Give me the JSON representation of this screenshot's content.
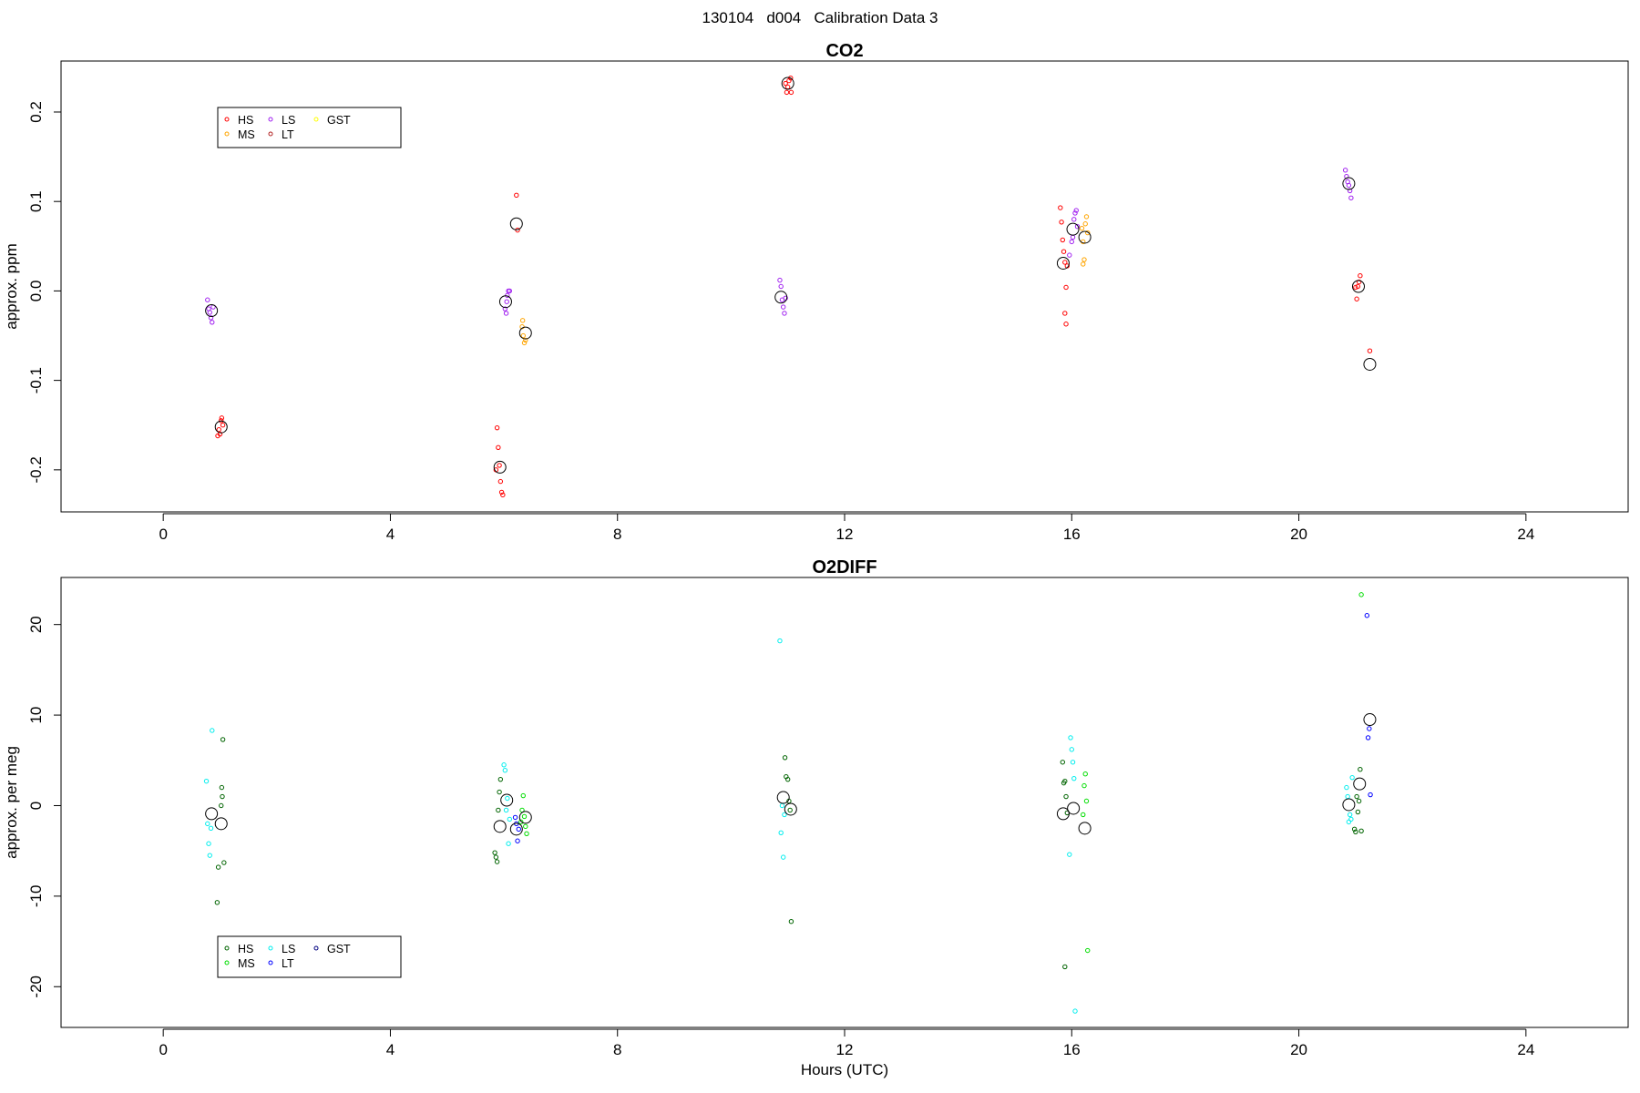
{
  "figure": {
    "title": "130104   d004   Calibration Data 3"
  },
  "chart_data": [
    {
      "type": "scatter",
      "title": "CO2",
      "xlabel": "",
      "ylabel": "approx. ppm",
      "xlim": [
        -1.8,
        25.8
      ],
      "ylim": [
        -0.247,
        0.257
      ],
      "xticks": [
        "0",
        "4",
        "8",
        "12",
        "16",
        "20",
        "24"
      ],
      "yticks": [
        "-0.2",
        "-0.1",
        "0.0",
        "0.1",
        "0.2"
      ],
      "legend": {
        "position": "top-left",
        "entries": [
          "HS",
          "MS",
          "LS",
          "LT",
          "GST"
        ]
      },
      "series": [
        {
          "name": "HS",
          "color": "#ff0000",
          "points": [
            [
              0.98,
              -0.155
            ],
            [
              1.0,
              -0.16
            ],
            [
              1.02,
              -0.145
            ],
            [
              0.96,
              -0.162
            ],
            [
              1.05,
              -0.15
            ],
            [
              1.03,
              -0.142
            ],
            [
              5.88,
              -0.153
            ],
            [
              5.9,
              -0.175
            ],
            [
              5.92,
              -0.195
            ],
            [
              5.94,
              -0.213
            ],
            [
              5.96,
              -0.225
            ],
            [
              5.98,
              -0.228
            ],
            [
              5.86,
              -0.2
            ],
            [
              6.22,
              0.107
            ],
            [
              6.24,
              0.068
            ],
            [
              10.98,
              0.222
            ],
            [
              11.02,
              0.235
            ],
            [
              11.05,
              0.238
            ],
            [
              11.06,
              0.222
            ],
            [
              11.0,
              0.228
            ],
            [
              10.96,
              0.232
            ],
            [
              15.8,
              0.093
            ],
            [
              15.82,
              0.077
            ],
            [
              15.84,
              0.057
            ],
            [
              15.86,
              0.044
            ],
            [
              15.88,
              0.032
            ],
            [
              15.9,
              0.004
            ],
            [
              15.88,
              -0.025
            ],
            [
              15.9,
              -0.037
            ],
            [
              15.92,
              0.028
            ],
            [
              21.0,
              0.004
            ],
            [
              21.02,
              -0.009
            ],
            [
              21.06,
              0.01
            ],
            [
              21.08,
              0.017
            ],
            [
              21.04,
              0.005
            ],
            [
              21.25,
              -0.067
            ]
          ]
        },
        {
          "name": "MS",
          "color": "#ffa500",
          "points": [
            [
              6.32,
              -0.04
            ],
            [
              6.34,
              -0.05
            ],
            [
              6.36,
              -0.058
            ],
            [
              6.38,
              -0.055
            ],
            [
              6.33,
              -0.033
            ],
            [
              16.18,
              0.07
            ],
            [
              16.2,
              0.055
            ],
            [
              16.22,
              0.035
            ],
            [
              16.24,
              0.075
            ],
            [
              16.26,
              0.083
            ],
            [
              16.28,
              0.065
            ],
            [
              16.2,
              0.03
            ]
          ]
        },
        {
          "name": "LS",
          "color": "#a020f0",
          "points": [
            [
              0.78,
              -0.01
            ],
            [
              0.8,
              -0.02
            ],
            [
              0.82,
              -0.024
            ],
            [
              0.84,
              -0.03
            ],
            [
              0.86,
              -0.035
            ],
            [
              0.88,
              -0.018
            ],
            [
              6.02,
              -0.02
            ],
            [
              6.04,
              -0.025
            ],
            [
              6.06,
              -0.005
            ],
            [
              6.08,
              0.0
            ],
            [
              6.1,
              0.0
            ],
            [
              6.05,
              -0.012
            ],
            [
              10.86,
              0.012
            ],
            [
              10.88,
              0.005
            ],
            [
              10.9,
              -0.01
            ],
            [
              10.92,
              -0.018
            ],
            [
              10.94,
              -0.025
            ],
            [
              10.96,
              -0.008
            ],
            [
              16.0,
              0.055
            ],
            [
              16.02,
              0.06
            ],
            [
              16.04,
              0.08
            ],
            [
              16.06,
              0.087
            ],
            [
              16.08,
              0.09
            ],
            [
              16.1,
              0.072
            ],
            [
              15.96,
              0.04
            ],
            [
              20.82,
              0.135
            ],
            [
              20.84,
              0.128
            ],
            [
              20.86,
              0.122
            ],
            [
              20.88,
              0.118
            ],
            [
              20.9,
              0.112
            ],
            [
              20.92,
              0.104
            ]
          ]
        },
        {
          "name": "LT",
          "color": "#b22222",
          "points": []
        },
        {
          "name": "GST",
          "color": "#ffff00",
          "points": []
        }
      ],
      "means": [
        [
          0.85,
          -0.022
        ],
        [
          1.02,
          -0.152
        ],
        [
          5.93,
          -0.197
        ],
        [
          6.03,
          -0.012
        ],
        [
          6.22,
          0.075
        ],
        [
          6.38,
          -0.047
        ],
        [
          10.88,
          -0.007
        ],
        [
          11.0,
          0.232
        ],
        [
          15.85,
          0.031
        ],
        [
          16.02,
          0.069
        ],
        [
          16.23,
          0.06
        ],
        [
          20.88,
          0.12
        ],
        [
          21.05,
          0.005
        ],
        [
          21.25,
          -0.082
        ]
      ]
    },
    {
      "type": "scatter",
      "title": "O2DIFF",
      "xlabel": "Hours (UTC)",
      "ylabel": "approx. per meg",
      "xlim": [
        -1.8,
        25.8
      ],
      "ylim": [
        -24.5,
        25.2
      ],
      "xticks": [
        "0",
        "4",
        "8",
        "12",
        "16",
        "20",
        "24"
      ],
      "yticks": [
        "-20",
        "-10",
        "0",
        "10",
        "20"
      ],
      "legend": {
        "position": "bottom-left",
        "entries": [
          "HS",
          "MS",
          "LS",
          "LT",
          "GST"
        ]
      },
      "series": [
        {
          "name": "HS",
          "color": "#006400",
          "points": [
            [
              0.95,
              -10.7
            ],
            [
              0.97,
              -6.8
            ],
            [
              1.02,
              0.0
            ],
            [
              1.04,
              1.0
            ],
            [
              1.03,
              2.0
            ],
            [
              1.05,
              7.3
            ],
            [
              1.07,
              -6.3
            ],
            [
              5.84,
              -5.2
            ],
            [
              5.86,
              -5.7
            ],
            [
              5.88,
              -6.2
            ],
            [
              5.9,
              -0.5
            ],
            [
              5.92,
              1.5
            ],
            [
              5.94,
              2.9
            ],
            [
              10.95,
              5.3
            ],
            [
              10.97,
              3.2
            ],
            [
              11.0,
              2.9
            ],
            [
              11.02,
              0.5
            ],
            [
              11.04,
              -0.5
            ],
            [
              11.06,
              -12.8
            ],
            [
              15.84,
              4.8
            ],
            [
              15.86,
              2.5
            ],
            [
              15.88,
              2.7
            ],
            [
              15.9,
              1.0
            ],
            [
              15.92,
              -0.8
            ],
            [
              15.88,
              -17.8
            ],
            [
              20.98,
              -2.6
            ],
            [
              21.0,
              -2.9
            ],
            [
              21.02,
              1.0
            ],
            [
              21.04,
              -0.7
            ],
            [
              21.06,
              0.5
            ],
            [
              21.08,
              4.0
            ],
            [
              21.1,
              -2.8
            ]
          ]
        },
        {
          "name": "MS",
          "color": "#00dd00",
          "points": [
            [
              6.32,
              -0.5
            ],
            [
              6.34,
              1.1
            ],
            [
              6.36,
              -1.2
            ],
            [
              6.38,
              -2.3
            ],
            [
              6.4,
              -3.1
            ],
            [
              6.3,
              -1.8
            ],
            [
              16.2,
              -1.0
            ],
            [
              16.22,
              2.2
            ],
            [
              16.24,
              3.5
            ],
            [
              16.26,
              0.5
            ],
            [
              16.28,
              -16.0
            ],
            [
              21.1,
              23.3
            ]
          ]
        },
        {
          "name": "LS",
          "color": "#00eeee",
          "points": [
            [
              0.76,
              2.7
            ],
            [
              0.78,
              -2.0
            ],
            [
              0.8,
              -4.2
            ],
            [
              0.82,
              -5.5
            ],
            [
              0.84,
              -2.5
            ],
            [
              0.86,
              8.3
            ],
            [
              6.0,
              4.5
            ],
            [
              6.02,
              3.9
            ],
            [
              6.04,
              -0.5
            ],
            [
              6.06,
              0.8
            ],
            [
              6.08,
              -4.2
            ],
            [
              6.1,
              -1.5
            ],
            [
              10.86,
              18.2
            ],
            [
              10.88,
              -3.0
            ],
            [
              10.9,
              0.0
            ],
            [
              10.92,
              -5.7
            ],
            [
              10.94,
              -1.0
            ],
            [
              15.98,
              7.5
            ],
            [
              16.0,
              6.2
            ],
            [
              16.02,
              4.8
            ],
            [
              16.04,
              3.0
            ],
            [
              15.96,
              -5.4
            ],
            [
              16.06,
              -22.7
            ],
            [
              20.84,
              2.0
            ],
            [
              20.86,
              1.0
            ],
            [
              20.88,
              -1.8
            ],
            [
              20.9,
              -1.0
            ],
            [
              20.92,
              -1.5
            ],
            [
              20.94,
              3.1
            ]
          ]
        },
        {
          "name": "LT",
          "color": "#0000ff",
          "points": [
            [
              6.2,
              -1.3
            ],
            [
              6.22,
              -2.0
            ],
            [
              6.24,
              -3.9
            ],
            [
              6.26,
              -2.6
            ],
            [
              21.2,
              21.0
            ],
            [
              21.22,
              7.5
            ],
            [
              21.24,
              8.5
            ],
            [
              21.26,
              1.2
            ]
          ]
        },
        {
          "name": "GST",
          "color": "#000080",
          "points": []
        }
      ],
      "means": [
        [
          0.85,
          -0.9
        ],
        [
          1.02,
          -2.0
        ],
        [
          5.93,
          -2.3
        ],
        [
          6.05,
          0.6
        ],
        [
          6.22,
          -2.6
        ],
        [
          6.38,
          -1.3
        ],
        [
          10.92,
          0.9
        ],
        [
          11.05,
          -0.4
        ],
        [
          15.85,
          -0.9
        ],
        [
          16.03,
          -0.3
        ],
        [
          16.23,
          -2.5
        ],
        [
          20.88,
          0.1
        ],
        [
          21.07,
          2.4
        ],
        [
          21.25,
          9.5
        ]
      ]
    }
  ]
}
